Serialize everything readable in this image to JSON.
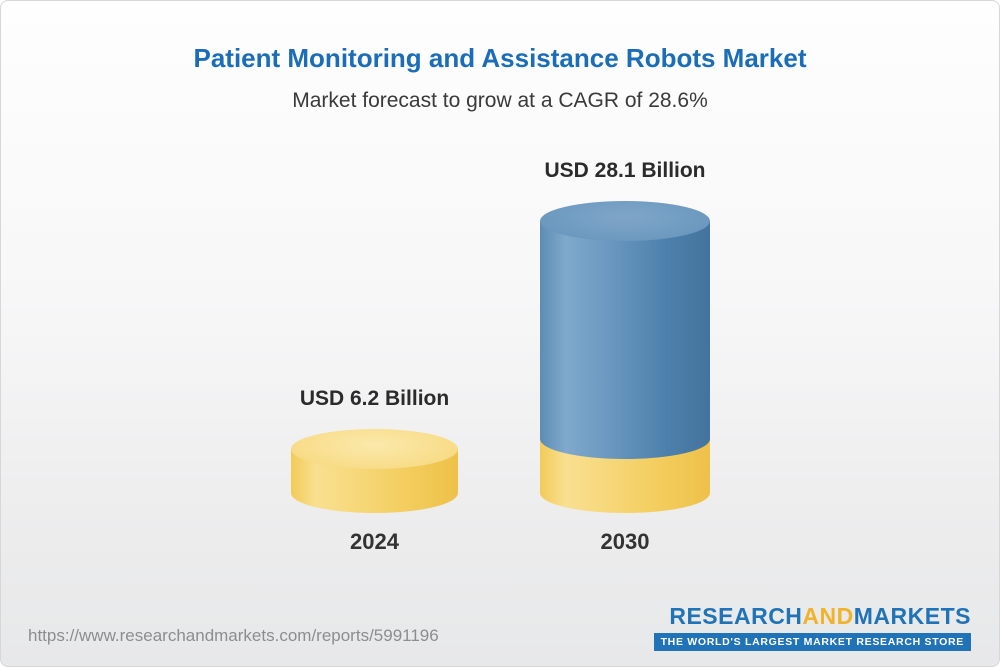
{
  "header": {
    "title": "Patient Monitoring and Assistance Robots Market",
    "subtitle": "Market forecast to grow at a CAGR of 28.6%",
    "title_color": "#1a6db6"
  },
  "chart_data": {
    "type": "bar",
    "variant": "3d-cylinder",
    "title": "Patient Monitoring and Assistance Robots Market",
    "subtitle": "Market forecast to grow at a CAGR of 28.6%",
    "cagr_percent": 28.6,
    "categories": [
      "2024",
      "2030"
    ],
    "values": [
      6.2,
      28.1
    ],
    "unit": "USD Billion",
    "value_labels": [
      "USD 6.2 Billion",
      "USD 28.1 Billion"
    ],
    "colors": {
      "bar_2024": "#f5ce63",
      "bar_2030_top_segment": "#4d82ad",
      "bar_2030_base_segment": "#f5ce63"
    },
    "legend": "none",
    "grid": false,
    "xlabel": "",
    "ylabel": ""
  },
  "footer": {
    "url": "https://www.researchandmarkets.com/reports/5991196",
    "logo_research": "RESEARCH",
    "logo_and": "AND",
    "logo_markets": "MARKETS",
    "tagline": "THE WORLD'S LARGEST MARKET RESEARCH STORE"
  }
}
